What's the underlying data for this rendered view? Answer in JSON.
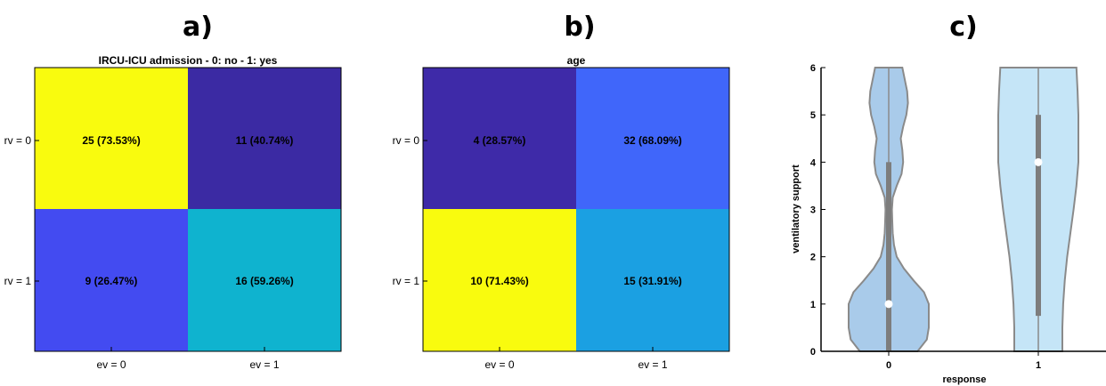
{
  "panels": {
    "a": {
      "letter": "a)"
    },
    "b": {
      "letter": "b)"
    },
    "c": {
      "letter": "c)"
    }
  },
  "chart_data": [
    {
      "type": "heatmap",
      "title": "IRCU-ICU admission - 0: no - 1: yes",
      "x_categories": [
        "ev = 0",
        "ev = 1"
      ],
      "y_categories": [
        "rv = 0",
        "rv = 1"
      ],
      "cells": [
        [
          {
            "label": "25 (73.53%)",
            "percent": 73.53,
            "color": "#f9fb0e"
          },
          {
            "label": "11 (40.74%)",
            "percent": 40.74,
            "color": "#3b2aa3"
          }
        ],
        [
          {
            "label": "9 (26.47%)",
            "percent": 26.47,
            "color": "#434bf1"
          },
          {
            "label": "16 (59.26%)",
            "percent": 59.26,
            "color": "#0fb3cf"
          }
        ]
      ]
    },
    {
      "type": "heatmap",
      "title": "age",
      "x_categories": [
        "ev = 0",
        "ev = 1"
      ],
      "y_categories": [
        "rv = 0",
        "rv = 1"
      ],
      "cells": [
        [
          {
            "label": "4 (28.57%)",
            "percent": 28.57,
            "color": "#3e2aa8"
          },
          {
            "label": "32 (68.09%)",
            "percent": 68.09,
            "color": "#4066fa"
          }
        ],
        [
          {
            "label": "10 (71.43%)",
            "percent": 71.43,
            "color": "#f9fb0e"
          },
          {
            "label": "15 (31.91%)",
            "percent": 31.91,
            "color": "#1ba0e2"
          }
        ]
      ]
    },
    {
      "type": "violin",
      "xlabel": "response",
      "ylabel": "ventilatory support",
      "ylim": [
        0,
        6
      ],
      "yticks": [
        0,
        1,
        2,
        3,
        4,
        5,
        6
      ],
      "categories": [
        "0",
        "1"
      ],
      "violins": [
        {
          "category": "0",
          "median": 1,
          "q1": 0,
          "q3": 4,
          "min": 0,
          "max": 6,
          "fill": "#a9cbea",
          "density": [
            [
              0,
              0.72
            ],
            [
              0.25,
              0.95
            ],
            [
              0.5,
              1.0
            ],
            [
              1,
              1.0
            ],
            [
              1.25,
              0.88
            ],
            [
              1.5,
              0.62
            ],
            [
              1.75,
              0.38
            ],
            [
              2,
              0.2
            ],
            [
              2.25,
              0.13
            ],
            [
              2.5,
              0.1
            ],
            [
              2.75,
              0.09
            ],
            [
              3,
              0.08
            ],
            [
              3.25,
              0.1
            ],
            [
              3.5,
              0.2
            ],
            [
              3.75,
              0.32
            ],
            [
              4,
              0.36
            ],
            [
              4.25,
              0.34
            ],
            [
              4.5,
              0.3
            ],
            [
              4.75,
              0.36
            ],
            [
              5,
              0.44
            ],
            [
              5.25,
              0.48
            ],
            [
              5.5,
              0.46
            ],
            [
              5.75,
              0.4
            ],
            [
              6,
              0.34
            ]
          ]
        },
        {
          "category": "1",
          "median": 4,
          "q1": 0.75,
          "q3": 5,
          "min": 0,
          "max": 6,
          "fill": "#c5e5f7",
          "density": [
            [
              0,
              0.6
            ],
            [
              0.25,
              0.6
            ],
            [
              0.5,
              0.6
            ],
            [
              1,
              0.62
            ],
            [
              1.5,
              0.66
            ],
            [
              2,
              0.72
            ],
            [
              2.5,
              0.8
            ],
            [
              3,
              0.88
            ],
            [
              3.5,
              0.95
            ],
            [
              4,
              1.0
            ],
            [
              4.5,
              1.0
            ],
            [
              5,
              1.0
            ],
            [
              5.5,
              0.98
            ],
            [
              6,
              0.95
            ]
          ]
        }
      ]
    }
  ]
}
